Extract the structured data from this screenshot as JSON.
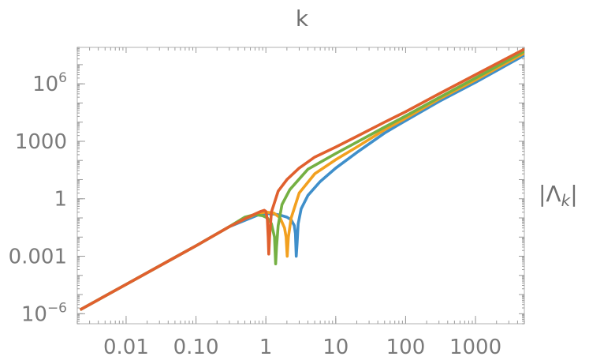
{
  "chart_data": {
    "type": "line",
    "title": "k",
    "xlabel": "",
    "ylabel": "|Λ_k|",
    "x_scale": "log",
    "y_scale": "log",
    "xlim": [
      0.002,
      5000
    ],
    "ylim": [
      3e-07,
      80000000.0
    ],
    "grid": false,
    "x_ticks": [
      {
        "value": 0.01,
        "label": "0.01"
      },
      {
        "value": 0.1,
        "label": "0.10"
      },
      {
        "value": 1,
        "label": "1"
      },
      {
        "value": 10,
        "label": "10"
      },
      {
        "value": 100,
        "label": "100"
      },
      {
        "value": 1000,
        "label": "1000"
      }
    ],
    "y_ticks": [
      {
        "value": 1e-06,
        "label": "10",
        "sup": "−6"
      },
      {
        "value": 0.001,
        "label": "0.001",
        "sup": ""
      },
      {
        "value": 1,
        "label": "1",
        "sup": ""
      },
      {
        "value": 1000,
        "label": "1000",
        "sup": ""
      },
      {
        "value": 1000000.0,
        "label": "10",
        "sup": "6"
      }
    ],
    "series": [
      {
        "color": "#3f8fca",
        "x": [
          0.0022,
          0.01,
          0.05,
          0.1,
          0.3,
          0.5,
          0.8,
          1.0,
          1.3,
          1.6,
          2.0,
          2.3,
          2.55,
          2.65,
          2.72,
          2.8,
          2.9,
          3.2,
          4,
          6,
          10,
          20,
          50,
          100,
          300,
          1000,
          5000
        ],
        "y": [
          1.6e-06,
          3.4e-05,
          0.00087,
          0.0035,
          0.035,
          0.075,
          0.15,
          0.17,
          0.16,
          0.14,
          0.11,
          0.08,
          0.04,
          0.015,
          0.001,
          0.005,
          0.05,
          0.3,
          1.5,
          8,
          40,
          260,
          2700,
          12000.0,
          120000.0,
          1200000.0,
          31000000.0
        ]
      },
      {
        "color": "#f2a01f",
        "x": [
          0.0022,
          0.01,
          0.05,
          0.1,
          0.3,
          0.5,
          0.8,
          1.0,
          1.3,
          1.6,
          1.85,
          1.95,
          2.02,
          2.1,
          2.3,
          3,
          5,
          10,
          20,
          50,
          100,
          300,
          1000,
          5000
        ],
        "y": [
          1.6e-06,
          3.4e-05,
          0.00087,
          0.0035,
          0.035,
          0.09,
          0.18,
          0.2,
          0.18,
          0.1,
          0.03,
          0.01,
          0.001,
          0.01,
          0.1,
          2,
          20,
          110,
          500,
          4000,
          16000.0,
          160000.0,
          1600000.0,
          40000000.0
        ]
      },
      {
        "color": "#75b043",
        "x": [
          0.0022,
          0.01,
          0.05,
          0.1,
          0.3,
          0.5,
          0.7,
          0.9,
          1.05,
          1.2,
          1.33,
          1.38,
          1.42,
          1.5,
          1.7,
          2.2,
          4,
          10,
          20,
          50,
          100,
          300,
          1000,
          5000
        ],
        "y": [
          1.6e-06,
          3.4e-05,
          0.00087,
          0.0035,
          0.035,
          0.11,
          0.15,
          0.13,
          0.1,
          0.05,
          0.01,
          0.0004,
          0.003,
          0.04,
          0.5,
          3,
          35,
          230,
          900,
          5500,
          21000.0,
          190000.0,
          2000000.0,
          50000000.0
        ]
      },
      {
        "color": "#e0602e",
        "x": [
          0.0022,
          0.01,
          0.05,
          0.1,
          0.3,
          0.5,
          0.7,
          0.85,
          0.95,
          1.0,
          1.05,
          1.08,
          1.1,
          1.13,
          1.2,
          1.5,
          2,
          3,
          5,
          10,
          20,
          50,
          100,
          300,
          1000,
          5000
        ],
        "y": [
          1.6e-06,
          3.4e-05,
          0.00087,
          0.0035,
          0.035,
          0.09,
          0.16,
          0.22,
          0.25,
          0.22,
          0.08,
          0.01,
          0.0013,
          0.01,
          0.2,
          2.5,
          10,
          40,
          150,
          500,
          1800,
          10000.0,
          35000.0,
          300000.0,
          3000000.0,
          65000000.0
        ]
      }
    ]
  }
}
